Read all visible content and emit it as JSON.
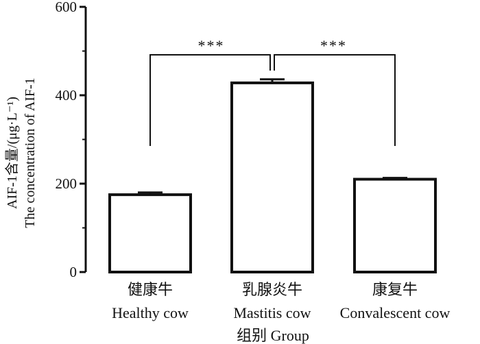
{
  "chart_data": {
    "type": "bar",
    "categories": [
      {
        "line1": "健康牛",
        "line2": "Healthy cow"
      },
      {
        "line1": "乳腺炎牛",
        "line2": "Mastitis cow"
      },
      {
        "line1": "康复牛",
        "line2": "Convalescent cow"
      }
    ],
    "values": [
      175,
      428,
      210
    ],
    "errors": [
      5,
      8,
      3
    ],
    "xlabel": "组别 Group",
    "ylabel": [
      "AIF-1含量/(μg·L⁻¹)",
      "The concentration of AIF-1"
    ],
    "ylim": [
      0,
      600
    ],
    "yticks": [
      "0",
      "200",
      "400",
      "600"
    ],
    "significance": [
      {
        "from": 0,
        "to": 1,
        "label": "***"
      },
      {
        "from": 1,
        "to": 2,
        "label": "***"
      }
    ],
    "colors": {
      "bar_fill": "#ffffff",
      "bar_stroke": "#111111",
      "axis": "#111111"
    }
  }
}
